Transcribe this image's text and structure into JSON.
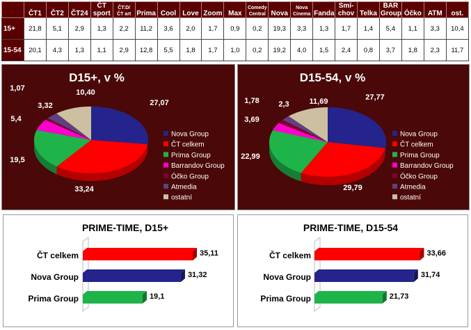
{
  "share_table": {
    "columns": [
      "ČT1",
      "ČT2",
      "ČT24",
      "ČT sport",
      "ČT:D/ ČT art",
      "Prima",
      "Cool",
      "Love",
      "Zoom",
      "Max",
      "Comedy Central",
      "Nova",
      "Nova Cinema",
      "Fanda",
      "Smí- chov",
      "Telka",
      "BAR Group",
      "Óčko",
      "ATM",
      "ost."
    ],
    "rows": [
      {
        "label": "15+",
        "values": [
          "21,8",
          "5,1",
          "2,9",
          "1,3",
          "2,2",
          "11,2",
          "3,6",
          "2,0",
          "1,7",
          "0,9",
          "0,2",
          "19,3",
          "3,3",
          "1,3",
          "1,7",
          "1,4",
          "5,4",
          "1,1",
          "3,3",
          "10,4"
        ]
      },
      {
        "label": "15-54",
        "values": [
          "20,1",
          "4,3",
          "1,3",
          "1,1",
          "2,9",
          "12,8",
          "5,5",
          "1,8",
          "1,7",
          "1,0",
          "0,2",
          "19,2",
          "4,0",
          "1,5",
          "2,4",
          "0,8",
          "3,7",
          "1,8",
          "2,3",
          "11,7"
        ]
      }
    ]
  },
  "chart_data": [
    {
      "type": "pie",
      "title": "D15+, v %",
      "legend": "right",
      "categories": [
        "Nova Group",
        "ČT celkem",
        "Prima Group",
        "Barrandov Group",
        "Óčko Group",
        "Atmedia",
        "ostatní"
      ],
      "values": [
        27.07,
        33.24,
        19.5,
        5.4,
        1.07,
        3.32,
        10.4
      ],
      "labels": [
        "27,07",
        "33,24",
        "19,5",
        "5,4",
        "1,07",
        "3,32",
        "10,40"
      ],
      "colors": [
        "#24248c",
        "#ff0000",
        "#1fb44a",
        "#ff00cc",
        "#800030",
        "#604080",
        "#cdc0a0"
      ]
    },
    {
      "type": "pie",
      "title": "D15-54, v %",
      "legend": "right",
      "categories": [
        "Nova Group",
        "ČT celkem",
        "Prima Group",
        "Barrandov Group",
        "Óčko Group",
        "Atmedia",
        "ostatní"
      ],
      "values": [
        27.77,
        29.79,
        22.99,
        3.69,
        1.78,
        2.3,
        11.69
      ],
      "labels": [
        "27,77",
        "29,79",
        "22,99",
        "3,69",
        "1,78",
        "2,3",
        "11,69"
      ],
      "colors": [
        "#24248c",
        "#ff0000",
        "#1fb44a",
        "#ff00cc",
        "#800030",
        "#604080",
        "#cdc0a0"
      ]
    },
    {
      "type": "bar",
      "orientation": "horizontal",
      "title": "PRIME-TIME, D15+",
      "categories": [
        "ČT celkem",
        "Nova Group",
        "Prima Group"
      ],
      "values": [
        35.11,
        31.32,
        19.1
      ],
      "labels": [
        "35,11",
        "31,32",
        "19,1"
      ],
      "colors": [
        "#ff0000",
        "#24248c",
        "#1fb44a"
      ],
      "xlim": [
        0,
        40
      ]
    },
    {
      "type": "bar",
      "orientation": "horizontal",
      "title": "PRIME-TIME, D15-54",
      "categories": [
        "ČT celkem",
        "Nova Group",
        "Prima Group"
      ],
      "values": [
        33.66,
        31.74,
        21.73
      ],
      "labels": [
        "33,66",
        "31,74",
        "21,73"
      ],
      "colors": [
        "#ff0000",
        "#24248c",
        "#1fb44a"
      ],
      "xlim": [
        0,
        40
      ]
    }
  ]
}
